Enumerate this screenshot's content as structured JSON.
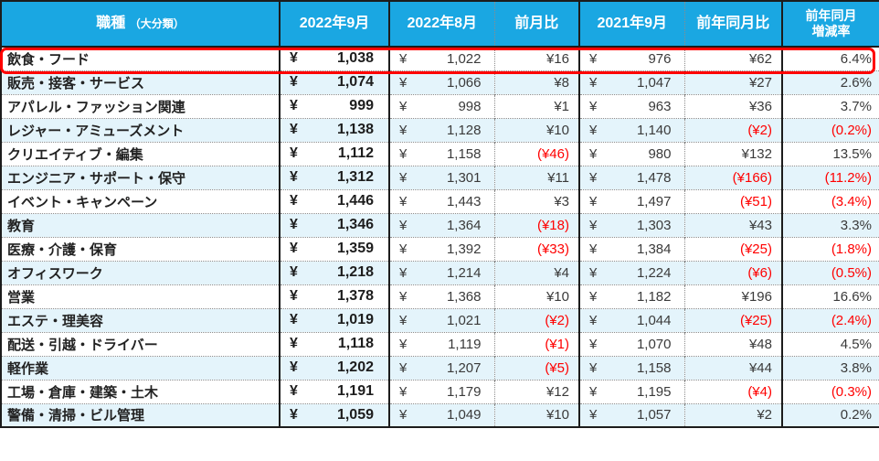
{
  "symbols": {
    "yen": "¥"
  },
  "colors": {
    "header_bg": "#1AA7E2",
    "alt_row_bg": "#E4F4FB",
    "border_dark": "#1C1C1C",
    "negative_text": "#FF0000",
    "highlight_border": "#FF0000"
  },
  "header": {
    "job_main": "職種",
    "job_sub": "（大分類）",
    "col_2022_09": "2022年9月",
    "col_2022_08": "2022年8月",
    "col_mom": "前月比",
    "col_2021_09": "2021年9月",
    "col_yoy": "前年同月比",
    "col_rate_line1": "前年同月",
    "col_rate_line2": "増減率"
  },
  "highlighted_row": "飲食・フード",
  "rows": [
    {
      "job": "飲食・フード",
      "m2022_09": "1,038",
      "m2022_08": "1,022",
      "mom": "¥16",
      "m2021_09": "976",
      "yoy": "¥62",
      "rate": "6.4%"
    },
    {
      "job": "販売・接客・サービス",
      "m2022_09": "1,074",
      "m2022_08": "1,066",
      "mom": "¥8",
      "m2021_09": "1,047",
      "yoy": "¥27",
      "rate": "2.6%"
    },
    {
      "job": "アパレル・ファッション関連",
      "m2022_09": "999",
      "m2022_08": "998",
      "mom": "¥1",
      "m2021_09": "963",
      "yoy": "¥36",
      "rate": "3.7%"
    },
    {
      "job": "レジャー・アミューズメント",
      "m2022_09": "1,138",
      "m2022_08": "1,128",
      "mom": "¥10",
      "m2021_09": "1,140",
      "yoy": "(¥2)",
      "rate": "(0.2%)"
    },
    {
      "job": "クリエイティブ・編集",
      "m2022_09": "1,112",
      "m2022_08": "1,158",
      "mom": "(¥46)",
      "m2021_09": "980",
      "yoy": "¥132",
      "rate": "13.5%"
    },
    {
      "job": "エンジニア・サポート・保守",
      "m2022_09": "1,312",
      "m2022_08": "1,301",
      "mom": "¥11",
      "m2021_09": "1,478",
      "yoy": "(¥166)",
      "rate": "(11.2%)"
    },
    {
      "job": "イベント・キャンペーン",
      "m2022_09": "1,446",
      "m2022_08": "1,443",
      "mom": "¥3",
      "m2021_09": "1,497",
      "yoy": "(¥51)",
      "rate": "(3.4%)"
    },
    {
      "job": "教育",
      "m2022_09": "1,346",
      "m2022_08": "1,364",
      "mom": "(¥18)",
      "m2021_09": "1,303",
      "yoy": "¥43",
      "rate": "3.3%"
    },
    {
      "job": "医療・介護・保育",
      "m2022_09": "1,359",
      "m2022_08": "1,392",
      "mom": "(¥33)",
      "m2021_09": "1,384",
      "yoy": "(¥25)",
      "rate": "(1.8%)"
    },
    {
      "job": "オフィスワーク",
      "m2022_09": "1,218",
      "m2022_08": "1,214",
      "mom": "¥4",
      "m2021_09": "1,224",
      "yoy": "(¥6)",
      "rate": "(0.5%)"
    },
    {
      "job": "営業",
      "m2022_09": "1,378",
      "m2022_08": "1,368",
      "mom": "¥10",
      "m2021_09": "1,182",
      "yoy": "¥196",
      "rate": "16.6%"
    },
    {
      "job": "エステ・理美容",
      "m2022_09": "1,019",
      "m2022_08": "1,021",
      "mom": "(¥2)",
      "m2021_09": "1,044",
      "yoy": "(¥25)",
      "rate": "(2.4%)"
    },
    {
      "job": "配送・引越・ドライバー",
      "m2022_09": "1,118",
      "m2022_08": "1,119",
      "mom": "(¥1)",
      "m2021_09": "1,070",
      "yoy": "¥48",
      "rate": "4.5%"
    },
    {
      "job": "軽作業",
      "m2022_09": "1,202",
      "m2022_08": "1,207",
      "mom": "(¥5)",
      "m2021_09": "1,158",
      "yoy": "¥44",
      "rate": "3.8%"
    },
    {
      "job": "工場・倉庫・建築・土木",
      "m2022_09": "1,191",
      "m2022_08": "1,179",
      "mom": "¥12",
      "m2021_09": "1,195",
      "yoy": "(¥4)",
      "rate": "(0.3%)"
    },
    {
      "job": "警備・清掃・ビル管理",
      "m2022_09": "1,059",
      "m2022_08": "1,049",
      "mom": "¥10",
      "m2021_09": "1,057",
      "yoy": "¥2",
      "rate": "0.2%"
    }
  ],
  "chart_data": {
    "type": "table",
    "columns": [
      "職種（大分類）",
      "2022年9月",
      "2022年8月",
      "前月比",
      "2021年9月",
      "前年同月比",
      "前年同月増減率"
    ],
    "rows": [
      [
        "飲食・フード",
        1038,
        1022,
        16,
        976,
        62,
        6.4
      ],
      [
        "販売・接客・サービス",
        1074,
        1066,
        8,
        1047,
        27,
        2.6
      ],
      [
        "アパレル・ファッション関連",
        999,
        998,
        1,
        963,
        36,
        3.7
      ],
      [
        "レジャー・アミューズメント",
        1138,
        1128,
        10,
        1140,
        -2,
        -0.2
      ],
      [
        "クリエイティブ・編集",
        1112,
        1158,
        -46,
        980,
        132,
        13.5
      ],
      [
        "エンジニア・サポート・保守",
        1312,
        1301,
        11,
        1478,
        -166,
        -11.2
      ],
      [
        "イベント・キャンペーン",
        1446,
        1443,
        3,
        1497,
        -51,
        -3.4
      ],
      [
        "教育",
        1346,
        1364,
        -18,
        1303,
        43,
        3.3
      ],
      [
        "医療・介護・保育",
        1359,
        1392,
        -33,
        1384,
        -25,
        -1.8
      ],
      [
        "オフィスワーク",
        1218,
        1214,
        4,
        1224,
        -6,
        -0.5
      ],
      [
        "営業",
        1378,
        1368,
        10,
        1182,
        196,
        16.6
      ],
      [
        "エステ・理美容",
        1019,
        1021,
        -2,
        1044,
        -25,
        -2.4
      ],
      [
        "配送・引越・ドライバー",
        1118,
        1119,
        -1,
        1070,
        48,
        4.5
      ],
      [
        "軽作業",
        1202,
        1207,
        -5,
        1158,
        44,
        3.8
      ],
      [
        "工場・倉庫・建築・土木",
        1191,
        1179,
        12,
        1195,
        -4,
        -0.3
      ],
      [
        "警備・清掃・ビル管理",
        1059,
        1049,
        10,
        1057,
        2,
        0.2
      ]
    ],
    "highlighted_row": "飲食・フード",
    "notes": "negative values shown in red parentheses"
  }
}
